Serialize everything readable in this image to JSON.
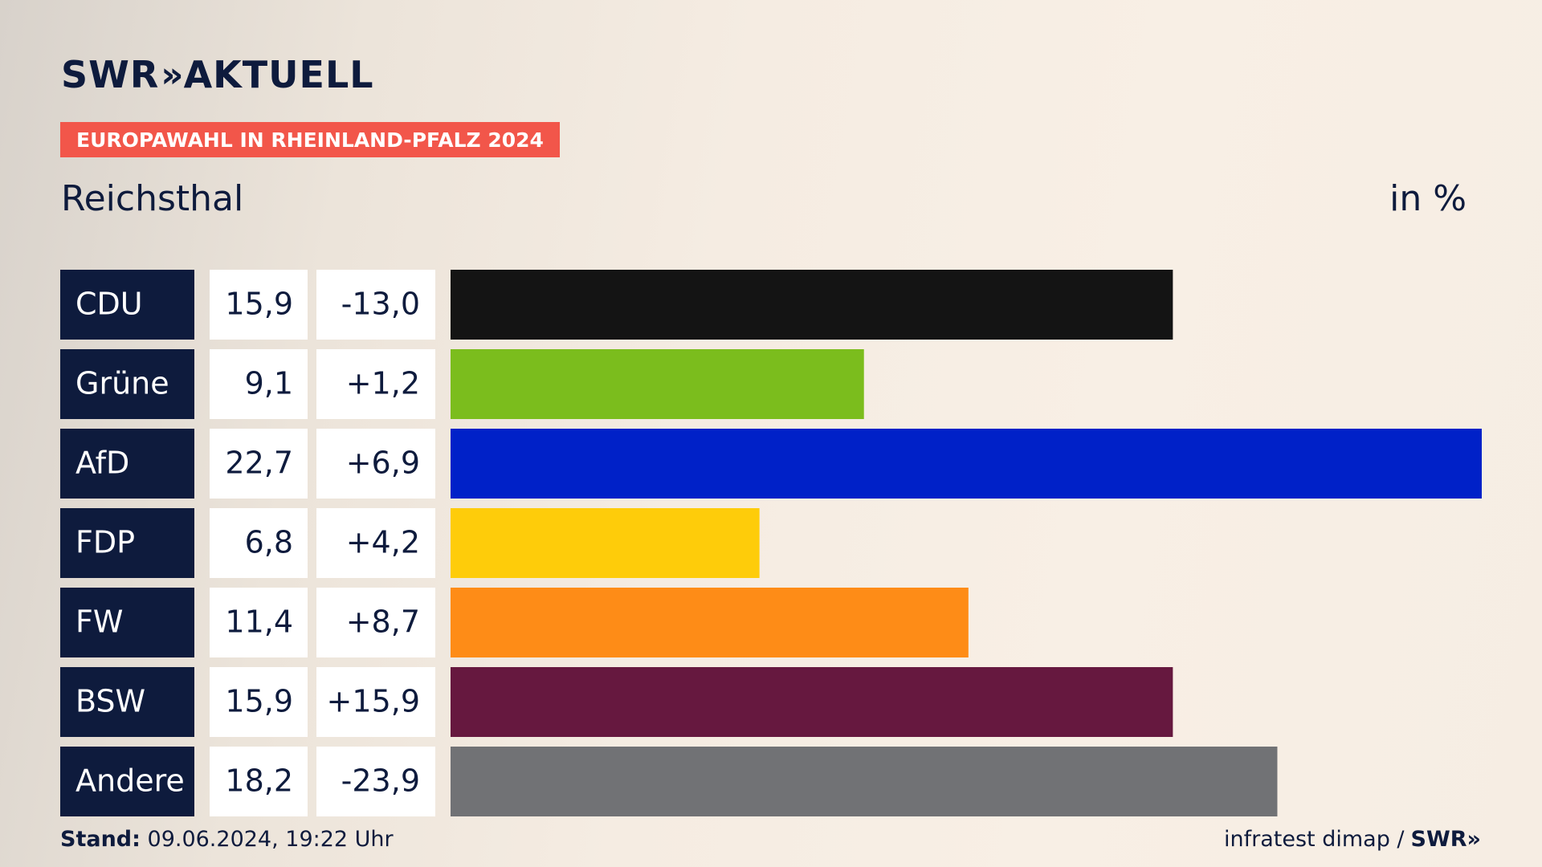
{
  "brand": {
    "logo_left": "SWR",
    "logo_chevrons": "»",
    "logo_right": "AKTUELL"
  },
  "tag": "EUROPAWAHL IN RHEINLAND-PFALZ 2024",
  "subtitle": "Reichsthal",
  "unit": "in %",
  "footer": {
    "stand_label": "Stand:",
    "stand_value": "09.06.2024, 19:22 Uhr",
    "source": "infratest dimap /",
    "source_brand": "SWR»"
  },
  "chart_data": {
    "type": "bar",
    "orientation": "horizontal",
    "categories": [
      "CDU",
      "Grüne",
      "AfD",
      "FDP",
      "FW",
      "BSW",
      "Andere"
    ],
    "values": [
      15.9,
      9.1,
      22.7,
      6.8,
      11.4,
      15.9,
      18.2
    ],
    "value_labels": [
      "15,9",
      "9,1",
      "22,7",
      "6,8",
      "11,4",
      "15,9",
      "18,2"
    ],
    "change_labels": [
      "-13,0",
      "+1,2",
      "+6,9",
      "+4,2",
      "+8,7",
      "+15,9",
      "-23,9"
    ],
    "changes": [
      -13.0,
      1.2,
      6.9,
      4.2,
      8.7,
      15.9,
      -23.9
    ],
    "colors": [
      "#141414",
      "#7bbd1d",
      "#0021c8",
      "#fecc0a",
      "#fe8c17",
      "#66183f",
      "#717275"
    ],
    "xlim": [
      0,
      22.7
    ],
    "grid": false,
    "legend": "none"
  }
}
